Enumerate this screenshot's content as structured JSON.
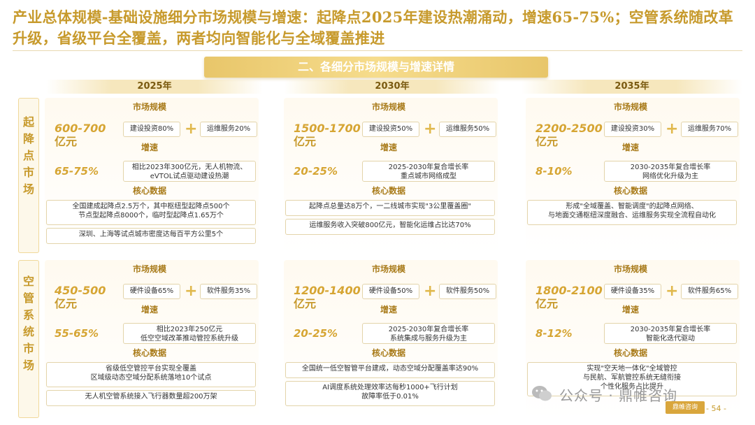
{
  "title": "产业总体规模-基础设施细分市场规模与增速：起降点2025年建设热潮涌动，增速65-75%；空管系统随改革升级，省级平台全覆盖，两者均向智能化与全域覆盖推进",
  "banner": "二、各细分市场规模与增速详情",
  "years": [
    "2025年",
    "2030年",
    "2035年"
  ],
  "labels": {
    "market": "市场规模",
    "growth": "增速",
    "core": "核心数据"
  },
  "rows": [
    {
      "side": [
        "起",
        "降",
        "点",
        "市",
        "场"
      ],
      "cols": [
        {
          "size": "600-700",
          "unit": "亿元",
          "a": "建设投资80%",
          "b": "运维服务20%",
          "rate": "65-75%",
          "growth_text": [
            "相比2023年300亿元，无人机物流、",
            "eVTOL试点驱动建设热潮"
          ],
          "core": [
            [
              "全国建成起降点2.5万个，其中枢纽型起降点500个",
              "节点型起降点8000个，临时型起降点1.65万个"
            ],
            [
              "深圳、上海等试点城市密度达每百平方公里5个"
            ]
          ]
        },
        {
          "size": "1500-1700",
          "unit": "亿元",
          "a": "建设投资50%",
          "b": "运维服务50%",
          "rate": "20-25%",
          "growth_text": [
            "2025-2030年复合增长率",
            "重点城市网络成型"
          ],
          "core": [
            [
              "起降点总量达8万个，一二线城市实现\"3公里覆盖圈\""
            ],
            [
              "运维服务收入突破800亿元，智能化运维占比达70%"
            ]
          ]
        },
        {
          "size": "2200-2500",
          "unit": "亿元",
          "a": "建设投资30%",
          "b": "运维服务70%",
          "rate": "8-10%",
          "growth_text": [
            "2030-2035年复合增长率",
            "网络优化升级为主"
          ],
          "core": [
            [
              "形成\"全域覆盖、智能调度\"的起降点网络、",
              "与地面交通枢纽深度融合、运维服务实现全流程自动化"
            ]
          ]
        }
      ]
    },
    {
      "side": [
        "空",
        "管",
        "系",
        "统",
        "市",
        "场"
      ],
      "cols": [
        {
          "size": "450-500",
          "unit": "亿元",
          "a": "硬件设备65%",
          "b": "软件服务35%",
          "rate": "55-65%",
          "growth_text": [
            "相比2023年250亿元",
            "低空空域改革推动管控系统升级"
          ],
          "core": [
            [
              "省级低空管控平台实现全覆盖",
              "区域级动态空域分配系统落地10个试点"
            ],
            [
              "无人机空管系统接入飞行器数量超200万架"
            ]
          ]
        },
        {
          "size": "1200-1400",
          "unit": "亿元",
          "a": "硬件设备50%",
          "b": "软件服务50%",
          "rate": "20-25%",
          "growth_text": [
            "2025-2030年复合增长率",
            "系统集成与服务升级为主"
          ],
          "core": [
            [
              "全国统一低空智管平台建成，动态空域分配覆盖率达90%"
            ],
            [
              "AI调度系统处理效率达每秒1000+飞行计划",
              "故障率低于0.01%"
            ]
          ]
        },
        {
          "size": "1800-2100",
          "unit": "亿元",
          "a": "硬件设备35%",
          "b": "软件服务65%",
          "rate": "8-12%",
          "growth_text": [
            "2030-2035年复合增长率",
            "智能化迭代驱动"
          ],
          "core": [
            [
              "实现\"空天地一体化\"全域管控",
              "与民航、军航管控系统无缝衔接",
              "个性化服务占比提升"
            ]
          ]
        }
      ]
    }
  ],
  "watermark": "公众号 · 鼎帷咨询",
  "logo_text": "鼎帷咨询",
  "page": "- 54 -"
}
